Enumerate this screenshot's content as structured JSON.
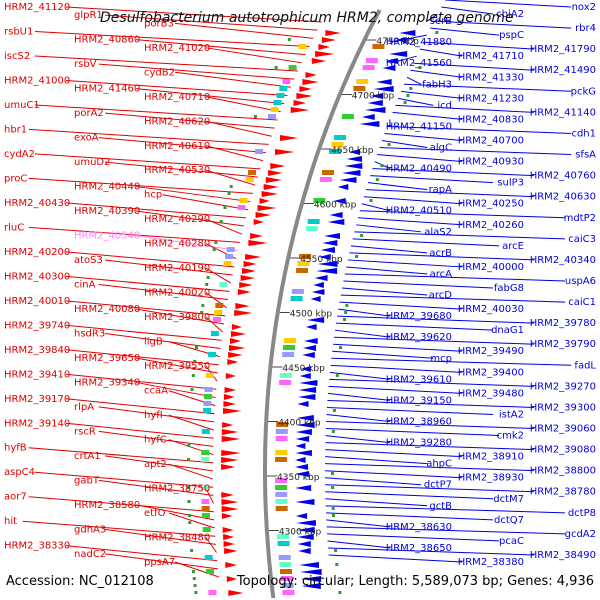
{
  "title": "Desulfobacterium autotrophicum HRM2, complete genome",
  "accession": "Accession: NC_012108",
  "summary": "Topology: circular; Length: 5,589,073 bp; Genes: 4,936",
  "colors": {
    "left_labels": "#e00000",
    "right_labels": "#0000e0",
    "highlight": "#ff88ff",
    "forward_genes": "#ff0000",
    "reverse_genes": "#0000ee",
    "backbone": "#888888"
  },
  "kbp_ticks": [
    {
      "label": "4750 kbp",
      "pos": 4750
    },
    {
      "label": "4700 kbp",
      "pos": 4700
    },
    {
      "label": "4650 kbp",
      "pos": 4650
    },
    {
      "label": "4600 kbp",
      "pos": 4600
    },
    {
      "label": "4550 kbp",
      "pos": 4550
    },
    {
      "label": "4500 kbp",
      "pos": 4500
    },
    {
      "label": "4450 kbp",
      "pos": 4450
    },
    {
      "label": "4400 kbp",
      "pos": 4400
    },
    {
      "label": "4350 kbp",
      "pos": 4350
    },
    {
      "label": "4300 kbp",
      "pos": 4300
    }
  ],
  "left_labels": [
    {
      "text": "HRM2_41120"
    },
    {
      "text": "glpR1"
    },
    {
      "text": "porB3"
    },
    {
      "text": "rsbU1"
    },
    {
      "text": "HRM2_40860"
    },
    {
      "text": "HRM2_41020"
    },
    {
      "text": "iscS2"
    },
    {
      "text": "rsbV"
    },
    {
      "text": "cydB2"
    },
    {
      "text": "HRM2_41000"
    },
    {
      "text": "HRM2_41460"
    },
    {
      "text": "HRM2_40710"
    },
    {
      "text": "umuC1"
    },
    {
      "text": "porA2"
    },
    {
      "text": "HRM2_40620"
    },
    {
      "text": "hbr1"
    },
    {
      "text": "exoA"
    },
    {
      "text": "HRM2_40610"
    },
    {
      "text": "cydA2"
    },
    {
      "text": "umuD2"
    },
    {
      "text": "HRM2_40530"
    },
    {
      "text": "proC"
    },
    {
      "text": "HRM2_40440"
    },
    {
      "text": "hcp"
    },
    {
      "text": "HRM2_40430"
    },
    {
      "text": "HRM2_40390"
    },
    {
      "text": "HRM2_40290"
    },
    {
      "text": "rluC"
    },
    {
      "text": "HRM2_40540",
      "highlight": true
    },
    {
      "text": "HRM2_40280"
    },
    {
      "text": "HRM2_40200"
    },
    {
      "text": "atoS3"
    },
    {
      "text": "HRM2_40190"
    },
    {
      "text": "HRM2_40300"
    },
    {
      "text": "cinA"
    },
    {
      "text": "HRM2_40020"
    },
    {
      "text": "HRM2_40010"
    },
    {
      "text": "HRM2_40080"
    },
    {
      "text": "HRM2_39800"
    },
    {
      "text": "HRM2_39740"
    },
    {
      "text": "hsdR3"
    },
    {
      "text": "ligB"
    },
    {
      "text": "HRM2_39840"
    },
    {
      "text": "HRM2_39650"
    },
    {
      "text": "HRM2_39550"
    },
    {
      "text": "HRM2_39410"
    },
    {
      "text": "HRM2_39340"
    },
    {
      "text": "ccaA"
    },
    {
      "text": "HRM2_39170"
    },
    {
      "text": "rlpA"
    },
    {
      "text": "hyfI"
    },
    {
      "text": "HRM2_39140"
    },
    {
      "text": "rscR"
    },
    {
      "text": "hyfC"
    },
    {
      "text": "hyfB"
    },
    {
      "text": "crtA1"
    },
    {
      "text": "apt2"
    },
    {
      "text": "aspC4"
    },
    {
      "text": "gabT"
    },
    {
      "text": "HRM2_38750"
    },
    {
      "text": "aor7"
    },
    {
      "text": "HRM2_38580"
    },
    {
      "text": "etfO"
    },
    {
      "text": "hit"
    },
    {
      "text": "gdhA3"
    },
    {
      "text": "HRM2_38480"
    },
    {
      "text": "HRM2_38330"
    },
    {
      "text": "nadC2"
    },
    {
      "text": "ppsA7"
    }
  ],
  "right_labels": [
    {
      "text": "nox2"
    },
    {
      "text": "cbiA2"
    },
    {
      "text": "serB"
    },
    {
      "text": "rbr4"
    },
    {
      "text": "pspC"
    },
    {
      "text": "HRM2_41880"
    },
    {
      "text": "HRM2_41790"
    },
    {
      "text": "HRM2_41710"
    },
    {
      "text": "HRM2_41560"
    },
    {
      "text": "HRM2_41490"
    },
    {
      "text": "HRM2_41330"
    },
    {
      "text": "fabH3"
    },
    {
      "text": "pckG"
    },
    {
      "text": "HRM2_41230"
    },
    {
      "text": "icd"
    },
    {
      "text": "HRM2_41140"
    },
    {
      "text": "HRM2_40830"
    },
    {
      "text": "HRM2_41150"
    },
    {
      "text": "cdh1"
    },
    {
      "text": "HRM2_40700"
    },
    {
      "text": "algC"
    },
    {
      "text": "sfsA"
    },
    {
      "text": "HRM2_40930"
    },
    {
      "text": "HRM2_40490"
    },
    {
      "text": "HRM2_40760"
    },
    {
      "text": "sulP3"
    },
    {
      "text": "rapA"
    },
    {
      "text": "HRM2_40630"
    },
    {
      "text": "HRM2_40250"
    },
    {
      "text": "HRM2_40510"
    },
    {
      "text": "mdtP2"
    },
    {
      "text": "HRM2_40260"
    },
    {
      "text": "alaS2"
    },
    {
      "text": "caiC3"
    },
    {
      "text": "arcE"
    },
    {
      "text": "acrB"
    },
    {
      "text": "HRM2_40340"
    },
    {
      "text": "HRM2_40000"
    },
    {
      "text": "arcA"
    },
    {
      "text": "uspA6"
    },
    {
      "text": "fabG8"
    },
    {
      "text": "arcD"
    },
    {
      "text": "caiC1"
    },
    {
      "text": "HRM2_40030"
    },
    {
      "text": "HRM2_39680"
    },
    {
      "text": "HRM2_39780"
    },
    {
      "text": "dnaG1"
    },
    {
      "text": "HRM2_39620"
    },
    {
      "text": "HRM2_39790"
    },
    {
      "text": "HRM2_39490"
    },
    {
      "text": "mcp"
    },
    {
      "text": "fadL"
    },
    {
      "text": "HRM2_39400"
    },
    {
      "text": "HRM2_39610"
    },
    {
      "text": "HRM2_39270"
    },
    {
      "text": "HRM2_39480"
    },
    {
      "text": "HRM2_39150"
    },
    {
      "text": "HRM2_39300"
    },
    {
      "text": "istA2"
    },
    {
      "text": "HRM2_38960"
    },
    {
      "text": "HRM2_39060"
    },
    {
      "text": "cmk2"
    },
    {
      "text": "HRM2_39280"
    },
    {
      "text": "HRM2_39080"
    },
    {
      "text": "HRM2_38910"
    },
    {
      "text": "ahpC"
    },
    {
      "text": "HRM2_38800"
    },
    {
      "text": "HRM2_38930"
    },
    {
      "text": "dctP7"
    },
    {
      "text": "HRM2_38780"
    },
    {
      "text": "dctM7"
    },
    {
      "text": "gctB"
    },
    {
      "text": "dctP8"
    },
    {
      "text": "dctQ7"
    },
    {
      "text": "HRM2_38630"
    },
    {
      "text": "gcdA2"
    },
    {
      "text": "pcaC"
    },
    {
      "text": "HRM2_38650"
    },
    {
      "text": "HRM2_38490"
    },
    {
      "text": "HRM2_38380"
    }
  ]
}
